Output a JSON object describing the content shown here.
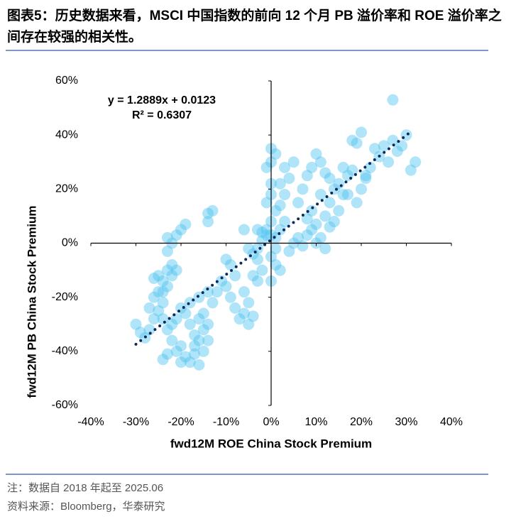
{
  "chart_data": {
    "type": "scatter",
    "title": "图表5：历史数据来看，MSCI 中国指数的前向 12 个月 PB 溢价率和 ROE 溢价率之间存在较强的相关性。",
    "x_label": "fwd12M ROE China Stock Premium",
    "y_label": "fwd12M PB China Stock Premium",
    "annotations": [
      "y = 1.2889x + 0.0123",
      "R² = 0.6307"
    ],
    "note": "注：数据自 2018 年起至 2025.06",
    "source": "资料来源：Bloomberg，华泰研究",
    "color": "#4fc3f0",
    "trendline": {
      "color": "#0d2a5e",
      "x": [
        -30,
        31
      ],
      "y": [
        -37.4,
        41.2
      ]
    },
    "xlim": [
      -40,
      40
    ],
    "ylim": [
      -60,
      60
    ],
    "xticks": [
      {
        "value": -40,
        "label": "-40%"
      },
      {
        "value": -30,
        "label": "-30%"
      },
      {
        "value": -20,
        "label": "-20%"
      },
      {
        "value": -10,
        "label": "-10%"
      },
      {
        "value": 0,
        "label": "0%"
      },
      {
        "value": 10,
        "label": "10%"
      },
      {
        "value": 20,
        "label": "20%"
      },
      {
        "value": 30,
        "label": "30%"
      },
      {
        "value": 40,
        "label": "40%"
      }
    ],
    "yticks": [
      {
        "value": -60,
        "label": "-60%"
      },
      {
        "value": -40,
        "label": "-40%"
      },
      {
        "value": -20,
        "label": "-20%"
      },
      {
        "value": 0,
        "label": "0%"
      },
      {
        "value": 20,
        "label": "20%"
      },
      {
        "value": 40,
        "label": "40%"
      },
      {
        "value": 60,
        "label": "60%"
      }
    ],
    "x": [
      -30,
      -29,
      -28,
      -27,
      -26,
      -25,
      -24,
      -25,
      -26,
      -25,
      -24,
      -23,
      -22,
      -21,
      -22,
      -23,
      -24,
      -26,
      -27,
      -24,
      -23,
      -22,
      -21,
      -20,
      -19,
      -18,
      -17,
      -16,
      -15,
      -16,
      -15,
      -14,
      -15,
      -16,
      -17,
      -18,
      -19,
      -20,
      -21,
      -22,
      -23,
      -24,
      -20,
      -17,
      -14,
      -13,
      -12,
      -14,
      -16,
      -18,
      -11,
      -10,
      -9,
      -8,
      -7,
      -6,
      -5,
      -4,
      -5,
      -6,
      -4,
      -3,
      -2,
      -3,
      -4,
      -5,
      -3,
      -2,
      -1,
      -2,
      -3,
      -6,
      -23,
      -23,
      -22,
      -21,
      -20,
      -19,
      -14,
      -13,
      -14,
      -9,
      -8,
      -10,
      0,
      1,
      0,
      -1,
      0,
      0,
      -1,
      1,
      0,
      -1,
      0,
      1,
      0,
      1,
      0,
      2,
      1,
      2,
      3,
      2,
      3,
      2,
      4,
      3,
      5,
      4,
      5,
      6,
      7,
      8,
      9,
      10,
      11,
      12,
      13,
      6,
      7,
      8,
      9,
      10,
      11,
      12,
      13,
      14,
      15,
      16,
      17,
      18,
      19,
      20,
      21,
      22,
      23,
      24,
      25,
      26,
      27,
      28,
      29,
      30,
      31,
      32,
      27,
      20,
      19,
      18,
      21,
      17,
      15,
      14,
      12,
      10,
      9,
      8,
      16,
      11,
      13
    ],
    "values": [
      -30,
      -33,
      -35,
      -32,
      -28,
      -25,
      -22,
      -18,
      -13,
      -12,
      -14,
      -16,
      -12,
      -10,
      -8,
      -10,
      -18,
      -20,
      -24,
      -28,
      -32,
      -36,
      -40,
      -38,
      -42,
      -44,
      -41,
      -45,
      -40,
      -36,
      -32,
      -30,
      -26,
      -28,
      -34,
      -30,
      -26,
      -24,
      -28,
      -30,
      -41,
      -43,
      -44,
      -38,
      -36,
      -22,
      -18,
      -18,
      -20,
      -22,
      -14,
      -16,
      -20,
      -24,
      -28,
      -26,
      -30,
      -27,
      -22,
      -18,
      -12,
      -14,
      -10,
      -6,
      -4,
      -2,
      -2,
      1,
      3,
      4,
      5,
      5,
      -3,
      2,
      0,
      3,
      5,
      7,
      11,
      12,
      8,
      -8,
      -12,
      -6,
      35,
      33,
      30,
      28,
      22,
      18,
      15,
      12,
      8,
      5,
      3,
      -2,
      -5,
      -8,
      -14,
      -10,
      2,
      5,
      8,
      14,
      18,
      22,
      24,
      28,
      30,
      -3,
      0,
      2,
      -1,
      3,
      5,
      0,
      2,
      -2,
      6,
      15,
      20,
      25,
      28,
      33,
      30,
      26,
      24,
      20,
      22,
      18,
      25,
      27,
      15,
      20,
      25,
      28,
      35,
      32,
      36,
      30,
      38,
      34,
      36,
      40,
      27,
      30,
      53,
      41,
      37,
      38,
      24,
      18,
      12,
      8,
      10,
      7,
      12,
      9,
      28,
      18,
      15
    ]
  }
}
